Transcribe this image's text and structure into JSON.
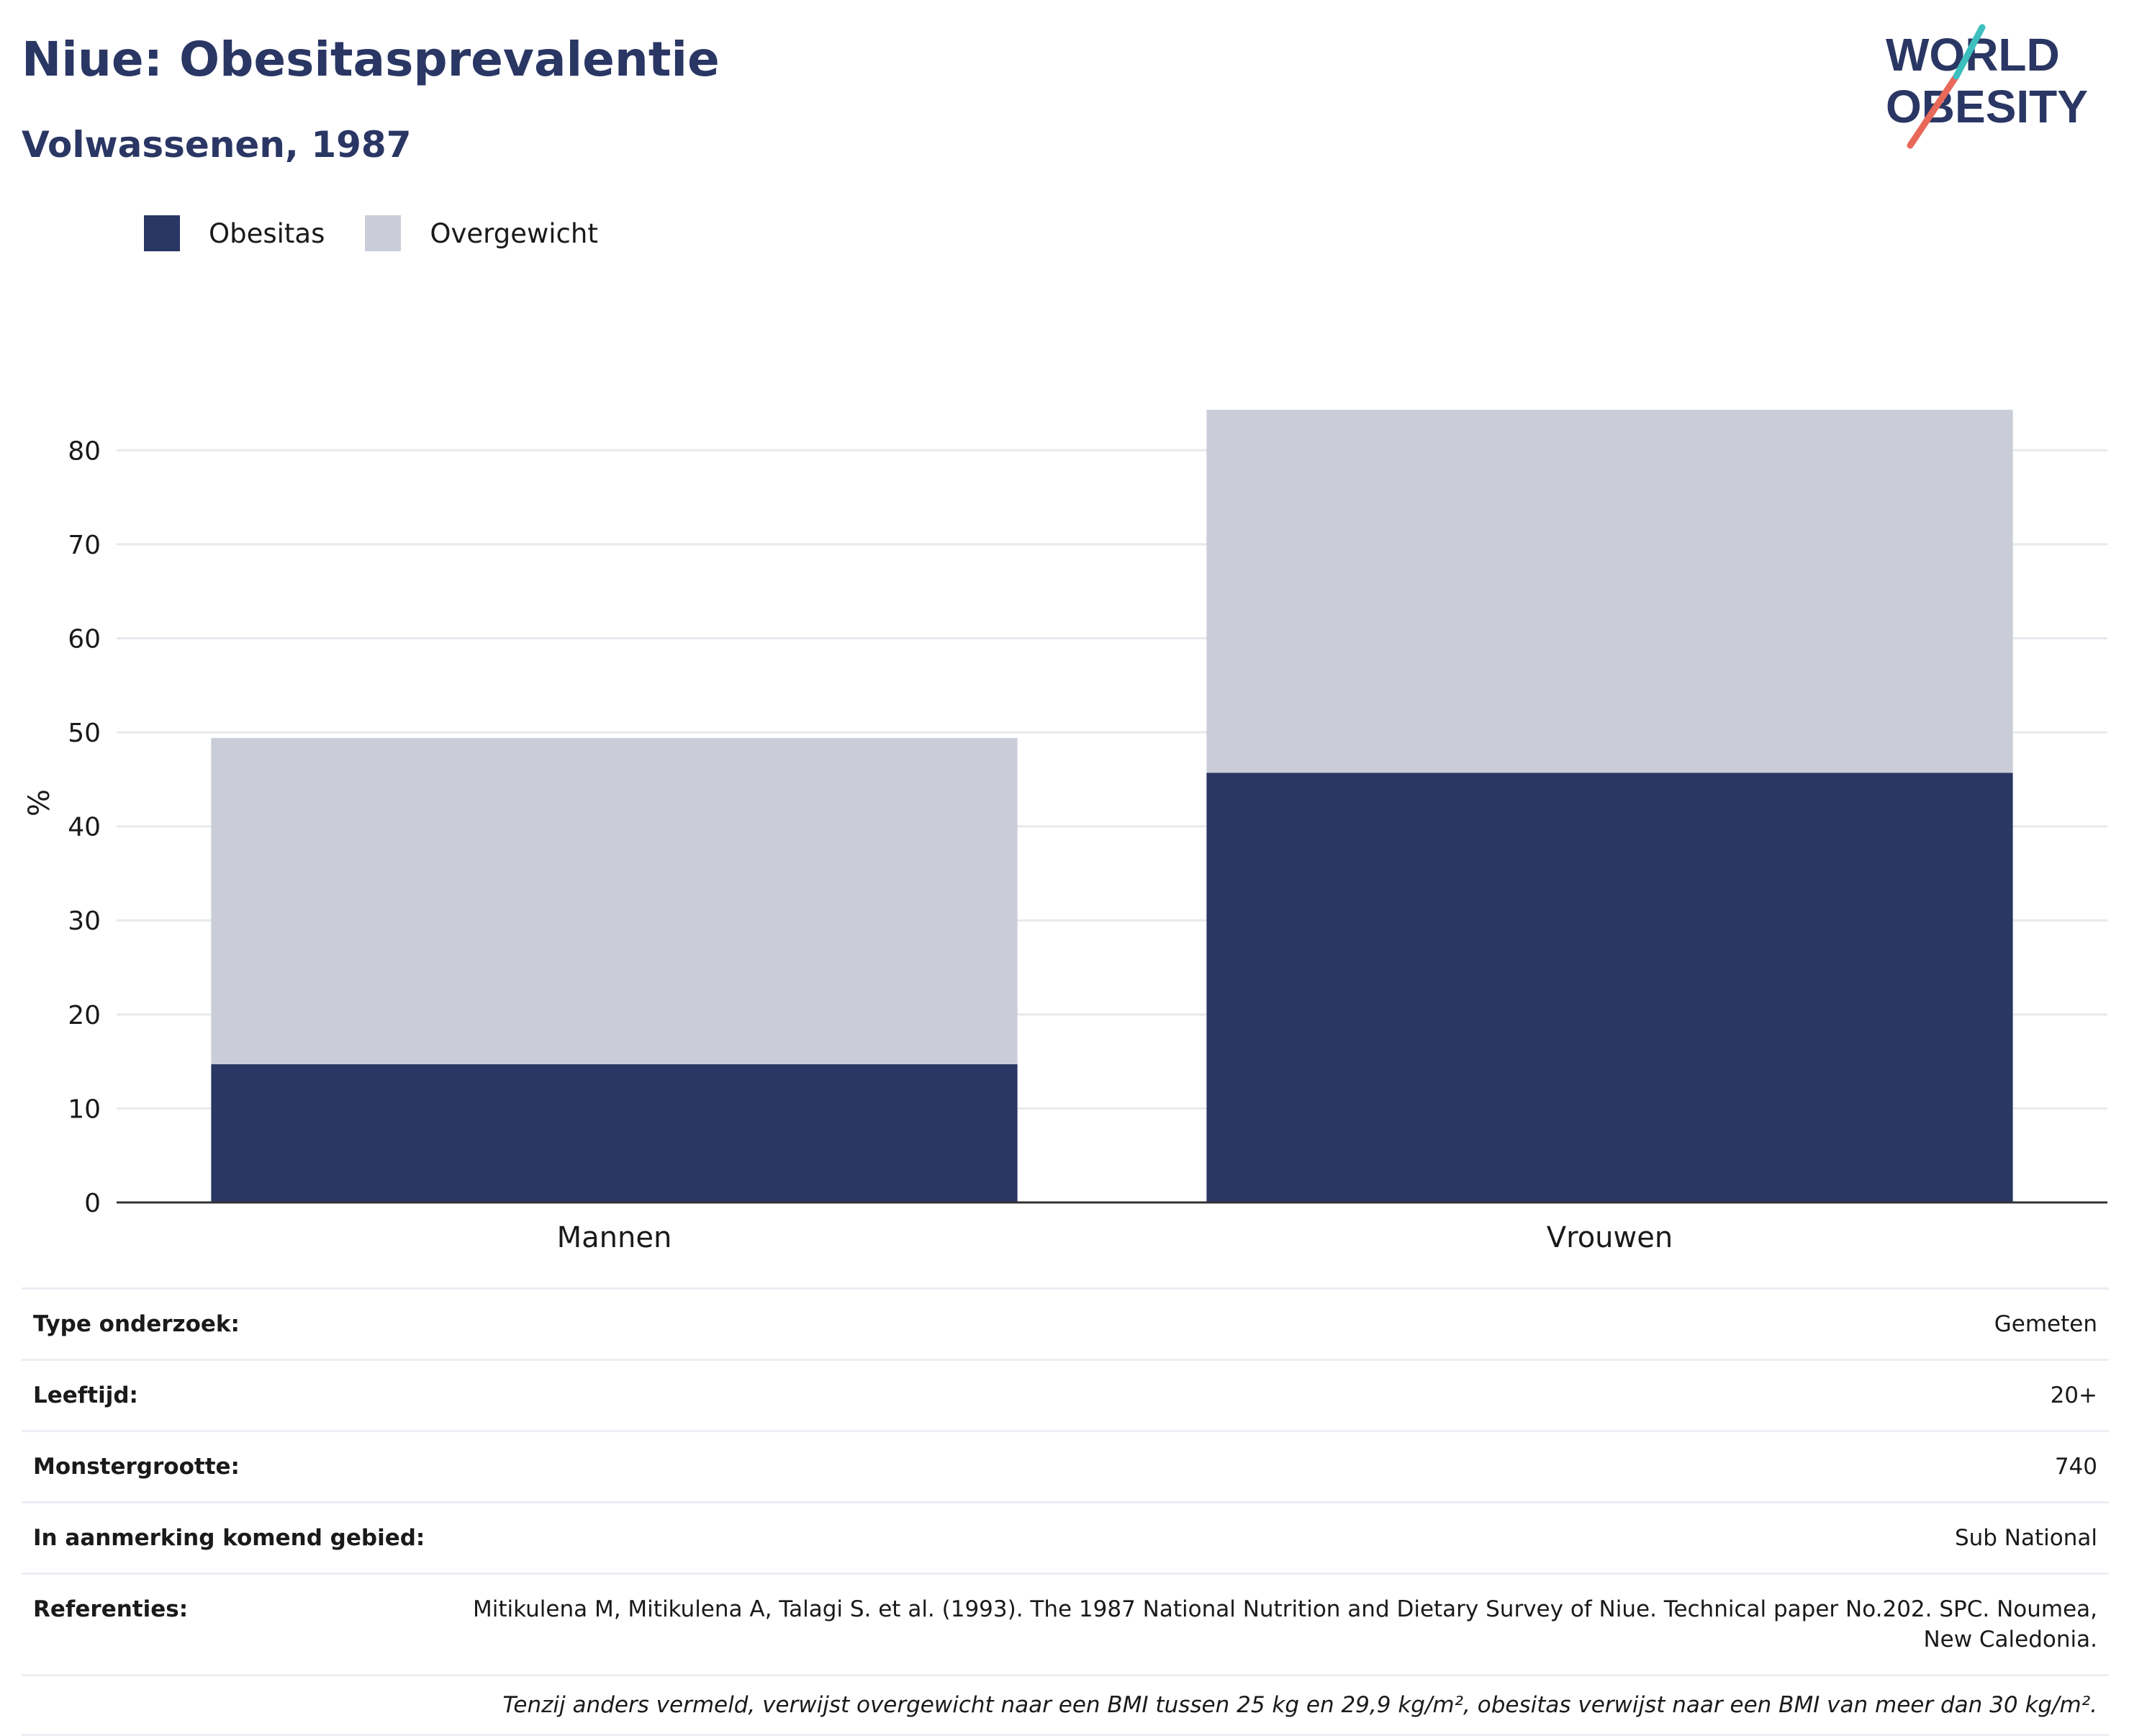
{
  "header": {
    "title": "Niue: Obesitasprevalentie",
    "subtitle": "Volwassenen, 1987"
  },
  "logo": {
    "line1": "WORLD",
    "line2": "OBESITY"
  },
  "legend": [
    {
      "label": "Obesitas",
      "color": "#2a3663"
    },
    {
      "label": "Overgewicht",
      "color": "#cacdd8"
    }
  ],
  "chart_data": {
    "type": "bar",
    "stacked": true,
    "categories": [
      "Mannen",
      "Vrouwen"
    ],
    "series": [
      {
        "name": "Obesitas",
        "color": "#2a3663",
        "values": [
          14.7,
          45.7
        ]
      },
      {
        "name": "Overgewicht",
        "color": "#cacdd8",
        "values": [
          34.7,
          38.6
        ]
      }
    ],
    "ylabel": "%",
    "ylim": [
      0,
      85
    ],
    "yticks": [
      0,
      10,
      20,
      30,
      40,
      50,
      60,
      70,
      80
    ],
    "grid": true,
    "legend_position": "top-left"
  },
  "info": {
    "rows": [
      {
        "key": "Type onderzoek:",
        "value": "Gemeten"
      },
      {
        "key": "Leeftijd:",
        "value": "20+"
      },
      {
        "key": "Monstergrootte:",
        "value": "740"
      },
      {
        "key": "In aanmerking komend gebied:",
        "value": "Sub National"
      }
    ],
    "references_key": "Referenties:",
    "references_value": "Mitikulena M, Mitikulena A, Talagi S. et al. (1993). The 1987 National Nutrition and Dietary Survey of Niue. Technical paper No.202. SPC. Noumea, New Caledonia.",
    "note": "Tenzij anders vermeld, verwijst overgewicht naar een BMI tussen 25 kg en 29,9 kg/m², obesitas verwijst naar een BMI van meer dan 30 kg/m²."
  }
}
